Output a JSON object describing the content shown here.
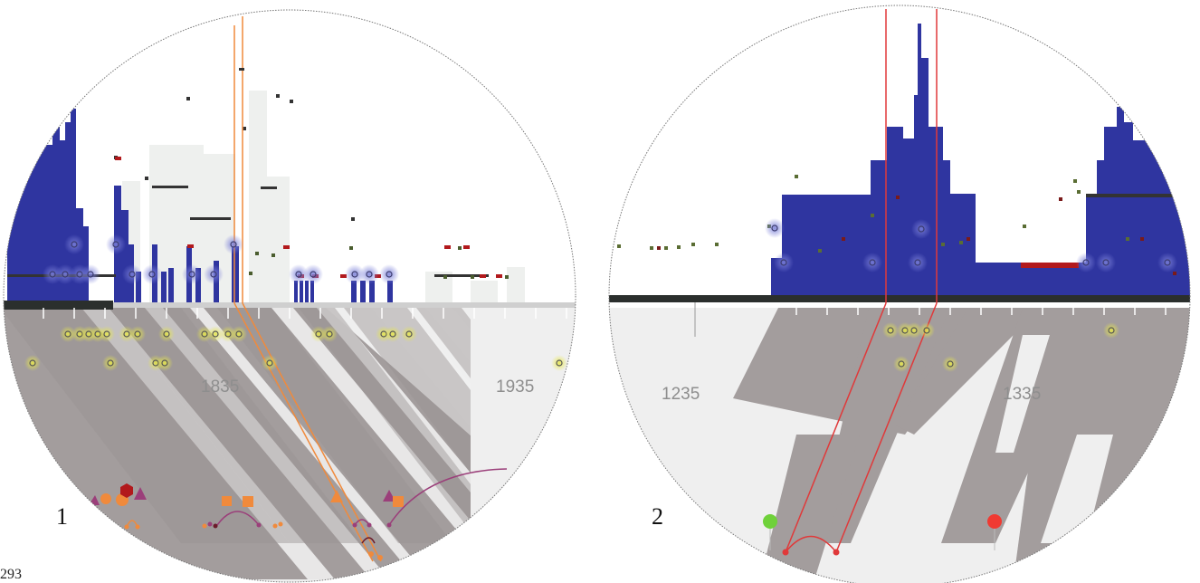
{
  "panels": [
    {
      "number": "1",
      "timeline_labels": [
        "1835",
        "1935"
      ]
    },
    {
      "number": "2",
      "timeline_labels": [
        "1235",
        "1335"
      ]
    }
  ],
  "page_number": "293",
  "colors": {
    "histogram": "#2f35a0",
    "ground_dark": "#2b2f2d",
    "shadow": "#a39d9d",
    "shadow_light": "#efefef",
    "highlight_orange": "#f08a3c",
    "highlight_red": "#e0393a",
    "marker_red": "#b2191c",
    "marker_yellow": "#d7d63a",
    "marker_green": "#6fd13a",
    "marker_purple": "#9b3f7a"
  },
  "icons": [
    "triangle-marker",
    "circle-marker",
    "square-marker",
    "hexagon-marker",
    "pin-marker"
  ]
}
